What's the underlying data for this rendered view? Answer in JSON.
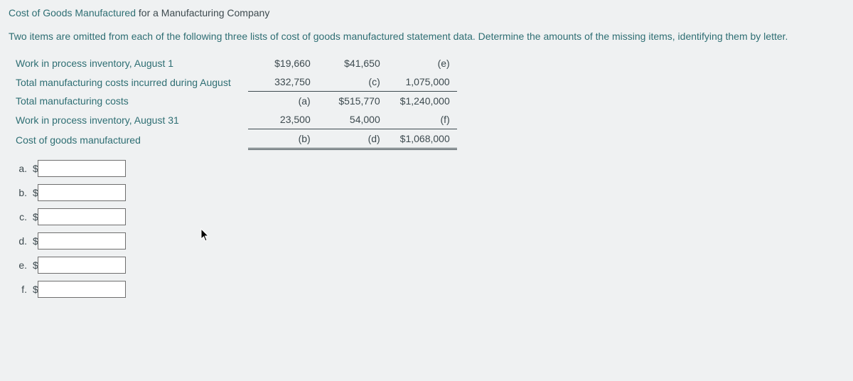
{
  "title": {
    "emph": "Cost of Goods Manufactured",
    "rest": " for a Manufacturing Company"
  },
  "instruction": "Two items are omitted from each of the following three lists of cost of goods manufactured statement data. Determine the amounts of the missing items, identifying them by letter.",
  "table": {
    "rows": [
      {
        "label": "Work in process inventory, August 1",
        "c1": "$19,660",
        "c2": "$41,650",
        "c3": "(e)",
        "style": "plain"
      },
      {
        "label": "Total manufacturing costs incurred during August",
        "c1": "332,750",
        "c2": "(c)",
        "c3": "1,075,000",
        "style": "underline"
      },
      {
        "label": "Total manufacturing costs",
        "c1": "(a)",
        "c2": "$515,770",
        "c3": "$1,240,000",
        "style": "plain"
      },
      {
        "label": "Work in process inventory, August 31",
        "c1": "23,500",
        "c2": "54,000",
        "c3": "(f)",
        "style": "underline"
      },
      {
        "label": "Cost of goods manufactured",
        "c1": "(b)",
        "c2": "(d)",
        "c3": "$1,068,000",
        "style": "double"
      }
    ]
  },
  "answers": [
    {
      "letter": "a."
    },
    {
      "letter": "b."
    },
    {
      "letter": "c."
    },
    {
      "letter": "d."
    },
    {
      "letter": "e."
    },
    {
      "letter": "f."
    }
  ],
  "currency_symbol": "$",
  "colors": {
    "background": "#eff1f2",
    "text_primary": "#3d4a4f",
    "text_teal": "#2e6e73",
    "input_border": "#6e6e6e",
    "rule": "#3d4a4f"
  }
}
